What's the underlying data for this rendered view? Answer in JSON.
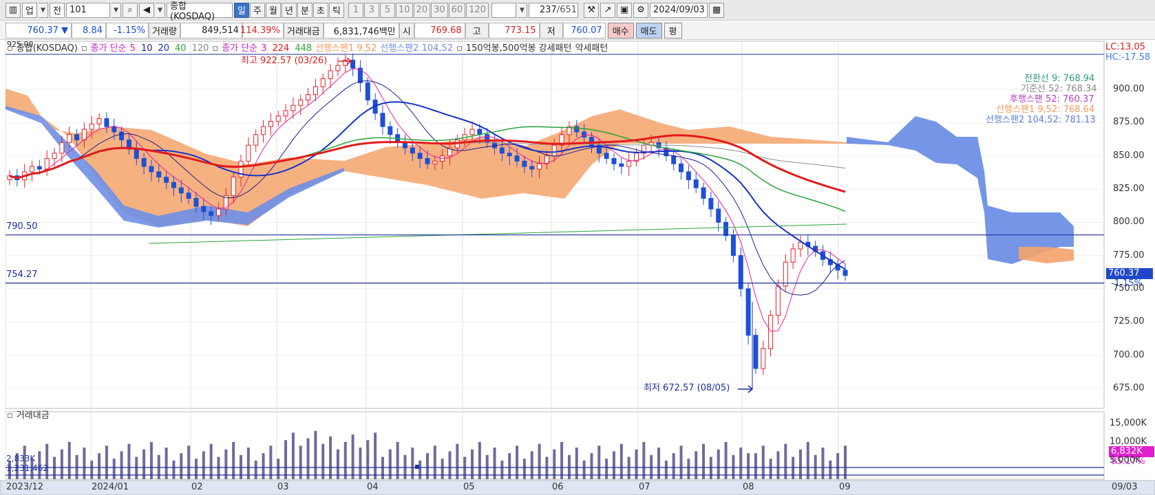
{
  "toolbar": {
    "market_label": "업",
    "prev_label": "전",
    "code_value": "101",
    "index_name": "종합(KOSDAQ)",
    "period_tabs": [
      "일",
      "주",
      "월",
      "년",
      "분",
      "초",
      "틱"
    ],
    "active_tab": "일",
    "interval_buttons": [
      "1",
      "3",
      "5",
      "10",
      "20",
      "30",
      "60",
      "120"
    ],
    "bar_count": "237",
    "bar_total": "/651",
    "date_value": "2024/09/03"
  },
  "quote": {
    "price": "760.37",
    "arrow": "▼",
    "change": "8.84",
    "change_pct": "-1.15%",
    "volume_label": "거래량",
    "volume": "849,514",
    "volume_pct": "114.39%",
    "amount_label": "거래대금",
    "amount": "6,831,746백만",
    "open_label": "시",
    "open": "769.68",
    "high_label": "고",
    "high": "773.15",
    "low_label": "저",
    "low": "760.07",
    "buy_label": "매수",
    "sell_label": "매도",
    "avg_label": "평"
  },
  "legend": {
    "index_name": "종합(KOSDAQ)",
    "ma_close_label": "종가 단순",
    "ma_periods_a": [
      "5",
      "10",
      "20",
      "40",
      "120"
    ],
    "ma_close_label2": "종가 단순",
    "ma_periods_b": [
      "3",
      "224",
      "448"
    ],
    "span1": "선행스팬1 9,52",
    "span2": "선행스팬2 104,52",
    "pattern_label": "150억봉,500억봉 강세패턴",
    "weak_label": "약세패턴",
    "top_left_value": "925.00"
  },
  "annotations": {
    "high_text": "최고 922.57 (03/26)",
    "low_text": "최저 672.57 (08/05)",
    "line_upper": "790.50",
    "line_lower": "754.27"
  },
  "ichimoku_values": {
    "conversion": "전환선 9: 768.94",
    "base": "기준선 52: 768.34",
    "lagging": "후행스팬 52: 760.37",
    "span1": "선행스팬1 9,52: 768.64",
    "span2": "선행스팬2 104,52: 781.13"
  },
  "right_labels": {
    "lc": "LC:13.05",
    "hc": "HC:-17.58",
    "price_tag": "760.37",
    "pct_tag": "-1.15%",
    "vol_tag": "6,832K",
    "vol_pct_tag": "95.17%"
  },
  "volume_panel": {
    "title": "거래대금",
    "left_a": "2,833K",
    "left_b": "1,231,462"
  },
  "colors": {
    "up": "#e2212b",
    "down": "#1e4fd6",
    "ma_red": "#e41a1a",
    "ma_blue": "#1432c8",
    "ma_green": "#2aa33a",
    "cloud_orange": "#f5a36b",
    "cloud_blue": "#6e8fe6",
    "volume_bar": "#6f6a9c"
  },
  "chart_data": {
    "type": "candlestick",
    "price_axis": [
      "900.00",
      "875.00",
      "850.00",
      "825.00",
      "800.00",
      "775.00",
      "750.00",
      "725.00",
      "700.00",
      "675.00"
    ],
    "volume_axis": [
      "15,000K",
      "10,000K",
      "5,000K"
    ],
    "date_axis": [
      "2023/12",
      "2024/01",
      "02",
      "03",
      "04",
      "05",
      "06",
      "07",
      "08",
      "09"
    ],
    "date_axis_right": "09/03",
    "ylim": [
      660,
      930
    ],
    "close_series": [
      835,
      832,
      838,
      842,
      840,
      848,
      852,
      860,
      866,
      862,
      870,
      874,
      878,
      872,
      868,
      862,
      855,
      848,
      842,
      838,
      834,
      830,
      826,
      822,
      818,
      812,
      808,
      805,
      810,
      820,
      834,
      846,
      858,
      866,
      872,
      876,
      880,
      884,
      888,
      892,
      896,
      902,
      908,
      914,
      918,
      922,
      916,
      905,
      892,
      882,
      872,
      866,
      860,
      856,
      852,
      848,
      844,
      846,
      850,
      856,
      862,
      866,
      870,
      866,
      860,
      856,
      852,
      850,
      846,
      842,
      840,
      844,
      850,
      858,
      866,
      872,
      868,
      864,
      858,
      852,
      848,
      844,
      842,
      846,
      852,
      858,
      860,
      856,
      850,
      844,
      838,
      832,
      826,
      818,
      810,
      800,
      790,
      775,
      750,
      715,
      690,
      705,
      730,
      752,
      770,
      780,
      785,
      782,
      778,
      772,
      768,
      764,
      760
    ]
  }
}
